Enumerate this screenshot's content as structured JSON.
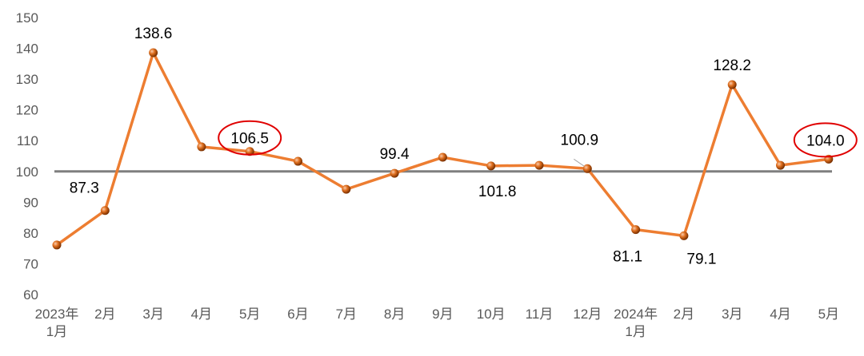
{
  "chart_data": {
    "type": "line",
    "title": "",
    "xlabel": "",
    "ylabel": "",
    "ylim": [
      60,
      150
    ],
    "yticks": [
      60,
      70,
      80,
      90,
      100,
      110,
      120,
      130,
      140,
      150
    ],
    "grid": false,
    "reference_line": 100,
    "categories": [
      [
        "2023年",
        "1月"
      ],
      [
        "2月"
      ],
      [
        "3月"
      ],
      [
        "4月"
      ],
      [
        "5月"
      ],
      [
        "6月"
      ],
      [
        "7月"
      ],
      [
        "8月"
      ],
      [
        "9月"
      ],
      [
        "10月"
      ],
      [
        "11月"
      ],
      [
        "12月"
      ],
      [
        "2024年",
        "1月"
      ],
      [
        "2月"
      ],
      [
        "3月"
      ],
      [
        "4月"
      ],
      [
        "5月"
      ]
    ],
    "series": [
      {
        "values": [
          76.1,
          87.3,
          138.6,
          108.0,
          106.5,
          103.3,
          94.2,
          99.4,
          104.6,
          101.8,
          102.0,
          100.9,
          81.1,
          79.1,
          128.2,
          102.0,
          104.0
        ],
        "data_labels": [
          null,
          "87.3",
          "138.6",
          null,
          "106.5",
          null,
          null,
          "99.4",
          null,
          "101.8",
          null,
          "100.9",
          "81.1",
          "79.1",
          "128.2",
          null,
          "104.0"
        ],
        "highlighted": [
          "106.5",
          "104.0"
        ]
      }
    ],
    "colors": {
      "line": "#ED7D31",
      "marker": "#C55A11",
      "reference": "#7F7F7F",
      "highlight": "#E00000"
    }
  }
}
